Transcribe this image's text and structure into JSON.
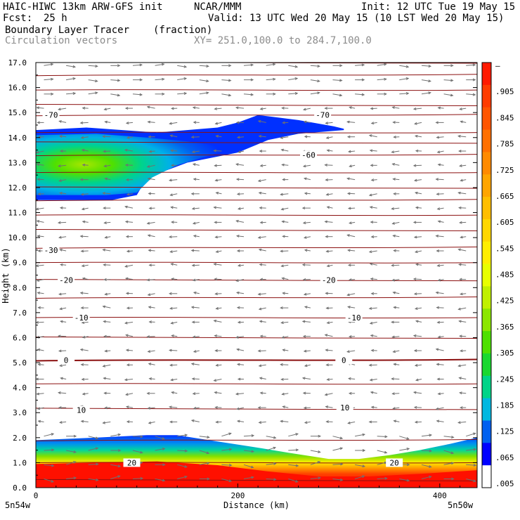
{
  "header": {
    "model": "HAIC-HIWC 13km ARW-GFS init",
    "org": "NCAR/MMM",
    "init": "Init: 12 UTC Tue 19 May 15",
    "fcst_label": "Fcst:",
    "fcst_value": "25 h",
    "valid": "Valid: 13 UTC Wed 20 May 15 (10 LST Wed 20 May 15)",
    "field": "Boundary Layer Tracer",
    "units": "(fraction)",
    "vectors": "Circulation vectors",
    "xy": "XY= 251.0,100.0 to 284.7,100.0"
  },
  "chart_data": {
    "type": "cross-section (filled contour + contour lines + vectors)",
    "xlabel": "Distance (km)",
    "ylabel": "Height (km)",
    "xlim": [
      0,
      437
    ],
    "ylim": [
      0,
      17
    ],
    "x_ticks": [
      0,
      200,
      400
    ],
    "y_ticks": [
      "0.0",
      "1.0",
      "2.0",
      "3.0",
      "4.0",
      "5.0",
      "6.0",
      "7.0",
      "8.0",
      "9.0",
      "10.0",
      "11.0",
      "12.0",
      "13.0",
      "14.0",
      "15.0",
      "16.0",
      "17.0"
    ],
    "corner_labels": {
      "left": "5n54w",
      "right": "5n50w"
    },
    "colorbar": {
      "labels": [
        "–",
        ".905",
        ".845",
        ".785",
        ".725",
        ".665",
        ".605",
        ".545",
        ".485",
        ".425",
        ".365",
        ".305",
        ".245",
        ".185",
        ".125",
        ".065",
        ".005"
      ],
      "colors": [
        "#ff1a00",
        "#ff3c00",
        "#ff5500",
        "#ff7000",
        "#ff8a00",
        "#ffa500",
        "#ffbe00",
        "#ffd700",
        "#ffee00",
        "#e8ff00",
        "#c0f000",
        "#8ce600",
        "#4ee000",
        "#1ad830",
        "#00d488",
        "#00b8e0",
        "#0060f0",
        "#0000ff",
        "#ffffff"
      ]
    },
    "contour_lines": [
      {
        "label": "-70",
        "label_points": [
          [
            15,
            14.9
          ],
          [
            284,
            14.9
          ]
        ]
      },
      {
        "label": "-60",
        "label_points": [
          [
            270,
            13.3
          ]
        ]
      },
      {
        "label": "-30",
        "label_points": [
          [
            15,
            9.5
          ]
        ]
      },
      {
        "label": "-20",
        "label_points": [
          [
            30,
            8.3
          ],
          [
            290,
            8.3
          ]
        ]
      },
      {
        "label": "-10",
        "label_points": [
          [
            45,
            6.8
          ],
          [
            315,
            6.8
          ]
        ]
      },
      {
        "label": "0",
        "label_points": [
          [
            30,
            5.1
          ],
          [
            305,
            5.1
          ]
        ]
      },
      {
        "label": "10",
        "label_points": [
          [
            45,
            3.1
          ],
          [
            306,
            3.2
          ]
        ]
      },
      {
        "label": "20",
        "label_points": [
          [
            95,
            1.0
          ],
          [
            355,
            1.0
          ]
        ]
      }
    ],
    "isotherm_heights_km": [
      0.3,
      1.0,
      1.9,
      3.15,
      4.15,
      5.1,
      6.0,
      6.8,
      7.6,
      8.3,
      9.0,
      9.6,
      10.3,
      10.9,
      11.5,
      12.0,
      12.6,
      13.3,
      13.8,
      14.2,
      14.9,
      15.3,
      15.9,
      16.5,
      17.0
    ],
    "tracer_layers": {
      "upper_plume": {
        "outer_top": [
          [
            0,
            14.3
          ],
          [
            50,
            14.4
          ],
          [
            120,
            14.2
          ],
          [
            180,
            14.4
          ],
          [
            200,
            14.6
          ],
          [
            220,
            14.9
          ],
          [
            260,
            14.7
          ],
          [
            295,
            14.45
          ],
          [
            305,
            14.35
          ]
        ],
        "outer_bottom": [
          [
            305,
            14.3
          ],
          [
            260,
            14.15
          ],
          [
            230,
            13.9
          ],
          [
            200,
            13.4
          ],
          [
            150,
            13.0
          ],
          [
            110,
            12.4
          ],
          [
            100,
            11.7
          ],
          [
            75,
            11.5
          ],
          [
            30,
            11.5
          ],
          [
            0,
            11.5
          ]
        ],
        "inner_peak_value": 0.3
      },
      "boundary_layer": {
        "top": [
          [
            0,
            1.9
          ],
          [
            60,
            2.0
          ],
          [
            110,
            2.1
          ],
          [
            140,
            2.1
          ],
          [
            180,
            1.85
          ],
          [
            220,
            1.6
          ],
          [
            250,
            1.4
          ],
          [
            290,
            1.15
          ],
          [
            320,
            1.15
          ],
          [
            350,
            1.3
          ],
          [
            380,
            1.5
          ],
          [
            410,
            1.75
          ],
          [
            437,
            2.0
          ]
        ],
        "peak_value": 0.95
      }
    },
    "vectors": "circulation vectors on a regular grid, mostly pointing westward (leftward) aloft and eastward near the boundary layer"
  }
}
